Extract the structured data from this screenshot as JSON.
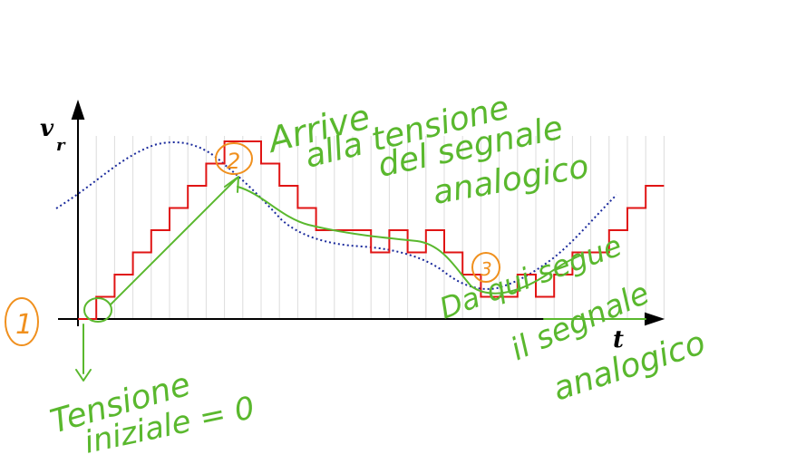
{
  "axes": {
    "y_label": "v",
    "y_label_sub": "r",
    "x_label": "t"
  },
  "signal": {
    "analog_color": "#1a2a9c",
    "staircase_color": "#e01414",
    "staircase_levels": [
      0,
      1,
      2,
      3,
      4,
      5,
      6,
      7,
      8,
      8,
      7,
      6,
      5,
      4,
      4,
      4,
      3,
      4,
      3,
      4,
      3,
      2,
      1,
      1,
      2,
      1,
      2,
      3,
      3,
      4,
      5,
      6
    ]
  },
  "markers": [
    {
      "id": "marker-1",
      "label": "1",
      "color": "#f0901e"
    },
    {
      "id": "marker-2",
      "label": "2",
      "color": "#f0901e"
    },
    {
      "id": "marker-3",
      "label": "3",
      "color": "#f0901e"
    }
  ],
  "annotations": {
    "color": "#5ab82e",
    "top_lines": [
      "Arrive",
      "alla tensione",
      "del segnale",
      "analogico"
    ],
    "initial_lines": [
      "Tensione",
      "iniziale = 0"
    ],
    "right_lines": [
      "Da qui segue",
      "il segnale",
      "analogico"
    ]
  }
}
